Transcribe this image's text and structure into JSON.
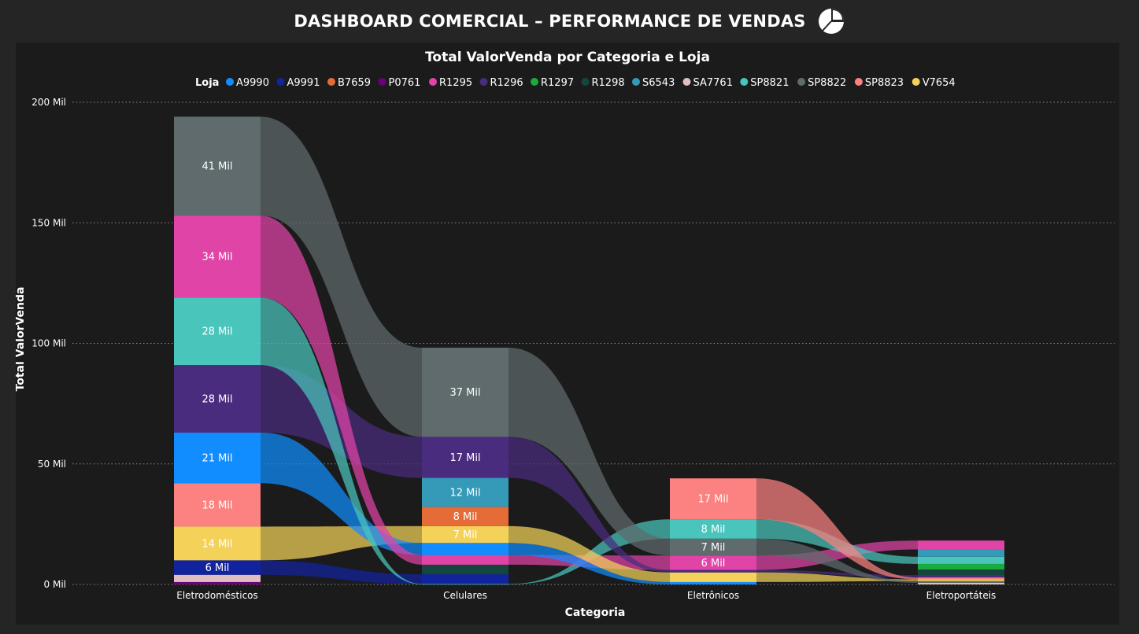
{
  "dashboard": {
    "title": "DASHBOARD COMERCIAL – PERFORMANCE DE VENDAS",
    "icon": "pie-chart-icon"
  },
  "colors": {
    "A9990": "#118DFF",
    "A9991": "#12239E",
    "B7659": "#E66C37",
    "P0761": "#6B007B",
    "R1295": "#E044A7",
    "R1296": "#4A2C7F",
    "R1297": "#1AAB40",
    "R1298": "#15463E",
    "S6543": "#3599B8",
    "SA7761": "#DFBFBF",
    "SP8821": "#4AC5BB",
    "SP8822": "#5F6B6D",
    "SP8823": "#FB8281",
    "V7654": "#F4D25A"
  },
  "chart_data": {
    "type": "ribbon",
    "title": "Total ValorVenda por Categoria e Loja",
    "xlabel": "Categoria",
    "ylabel": "Total ValorVenda",
    "ylim": [
      0,
      200000
    ],
    "yticks": [
      "0 Mil",
      "50 Mil",
      "100 Mil",
      "150 Mil",
      "200 Mil"
    ],
    "grid": true,
    "legend": {
      "title": "Loja",
      "position": "top-center",
      "entries": [
        "A9990",
        "A9991",
        "B7659",
        "P0761",
        "R1295",
        "R1296",
        "R1297",
        "R1298",
        "S6543",
        "SA7761",
        "SP8821",
        "SP8822",
        "SP8823",
        "V7654"
      ]
    },
    "categories": [
      "Eletrodomésticos",
      "Celulares",
      "Eletrônicos",
      "Eletroportáteis"
    ],
    "columns": [
      {
        "category": "Eletrodomésticos",
        "segments": [
          {
            "loja": "P0761",
            "value": 1000,
            "label": ""
          },
          {
            "loja": "SA7761",
            "value": 3000,
            "label": ""
          },
          {
            "loja": "A9991",
            "value": 6000,
            "label": "6 Mil"
          },
          {
            "loja": "V7654",
            "value": 14000,
            "label": "14 Mil"
          },
          {
            "loja": "SP8823",
            "value": 18000,
            "label": "18 Mil"
          },
          {
            "loja": "A9990",
            "value": 21000,
            "label": "21 Mil"
          },
          {
            "loja": "R1296",
            "value": 28000,
            "label": "28 Mil"
          },
          {
            "loja": "SP8821",
            "value": 28000,
            "label": "28 Mil"
          },
          {
            "loja": "R1295",
            "value": 34000,
            "label": "34 Mil"
          },
          {
            "loja": "SP8822",
            "value": 41000,
            "label": "41 Mil"
          }
        ]
      },
      {
        "category": "Celulares",
        "segments": [
          {
            "loja": "SP8821",
            "value": 200,
            "label": ""
          },
          {
            "loja": "A9991",
            "value": 4000,
            "label": ""
          },
          {
            "loja": "R1298",
            "value": 4000,
            "label": ""
          },
          {
            "loja": "R1295",
            "value": 4000,
            "label": ""
          },
          {
            "loja": "A9990",
            "value": 5000,
            "label": ""
          },
          {
            "loja": "V7654",
            "value": 7000,
            "label": "7 Mil"
          },
          {
            "loja": "B7659",
            "value": 8000,
            "label": "8 Mil"
          },
          {
            "loja": "S6543",
            "value": 12000,
            "label": "12 Mil"
          },
          {
            "loja": "R1296",
            "value": 17000,
            "label": "17 Mil"
          },
          {
            "loja": "SP8822",
            "value": 37000,
            "label": "37 Mil"
          }
        ]
      },
      {
        "category": "Eletrônicos",
        "segments": [
          {
            "loja": "A9990",
            "value": 1000,
            "label": ""
          },
          {
            "loja": "V7654",
            "value": 4000,
            "label": ""
          },
          {
            "loja": "R1296",
            "value": 1000,
            "label": ""
          },
          {
            "loja": "R1295",
            "value": 6000,
            "label": "6 Mil"
          },
          {
            "loja": "SP8822",
            "value": 7000,
            "label": "7 Mil"
          },
          {
            "loja": "SP8821",
            "value": 8000,
            "label": "8 Mil"
          },
          {
            "loja": "SP8823",
            "value": 17000,
            "label": "17 Mil"
          }
        ]
      },
      {
        "category": "Eletroportáteis",
        "segments": [
          {
            "loja": "SA7761",
            "value": 700,
            "label": ""
          },
          {
            "loja": "SP8822",
            "value": 700,
            "label": ""
          },
          {
            "loja": "V7654",
            "value": 700,
            "label": ""
          },
          {
            "loja": "SP8823",
            "value": 800,
            "label": ""
          },
          {
            "loja": "R1296",
            "value": 1000,
            "label": ""
          },
          {
            "loja": "R1298",
            "value": 2300,
            "label": ""
          },
          {
            "loja": "R1297",
            "value": 2300,
            "label": ""
          },
          {
            "loja": "SP8821",
            "value": 3000,
            "label": ""
          },
          {
            "loja": "S6543",
            "value": 3000,
            "label": ""
          },
          {
            "loja": "R1295",
            "value": 3700,
            "label": ""
          }
        ]
      }
    ]
  }
}
